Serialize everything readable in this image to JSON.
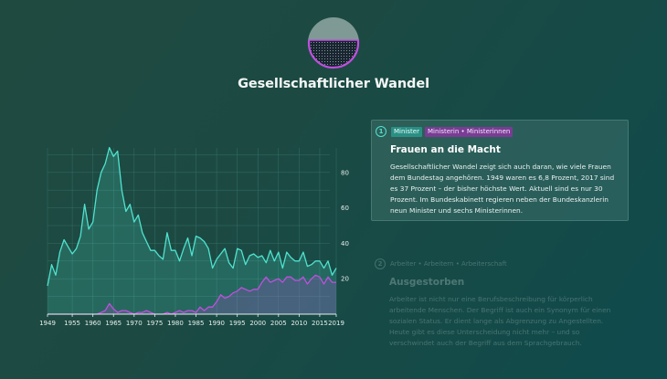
{
  "header": {
    "title": "Gesellschaftlicher Wandel",
    "logo_icon": "half-filled-circle-icon"
  },
  "colors": {
    "accent_teal": "#4fe3cf",
    "accent_purple": "#c04fe0",
    "grid": "#3d7f74"
  },
  "chart_data": {
    "type": "area",
    "title": "",
    "xlabel": "",
    "ylabel": "",
    "xlim": [
      1949,
      2019
    ],
    "ylim": [
      0,
      100
    ],
    "grid": true,
    "x_ticks": [
      "1949",
      "1955",
      "1960",
      "1965",
      "1970",
      "1975",
      "1980",
      "1985",
      "1990",
      "1995",
      "2000",
      "2005",
      "2010",
      "2015",
      "2019"
    ],
    "y_ticks": [
      "20",
      "40",
      "60",
      "80"
    ],
    "series": [
      {
        "color": "#4fe3cf",
        "x": [
          1949,
          1950,
          1951,
          1952,
          1953,
          1954,
          1955,
          1956,
          1957,
          1958,
          1959,
          1960,
          1961,
          1962,
          1963,
          1964,
          1965,
          1966,
          1967,
          1968,
          1969,
          1970,
          1971,
          1972,
          1973,
          1974,
          1975,
          1976,
          1977,
          1978,
          1979,
          1980,
          1981,
          1982,
          1983,
          1984,
          1985,
          1986,
          1987,
          1988,
          1989,
          1990,
          1991,
          1992,
          1993,
          1994,
          1995,
          1996,
          1997,
          1998,
          1999,
          2000,
          2001,
          2002,
          2003,
          2004,
          2005,
          2006,
          2007,
          2008,
          2009,
          2010,
          2011,
          2012,
          2013,
          2014,
          2015,
          2016,
          2017,
          2018,
          2019
        ],
        "values": [
          16,
          28,
          22,
          35,
          42,
          38,
          34,
          37,
          44,
          62,
          48,
          52,
          70,
          80,
          85,
          94,
          89,
          92,
          70,
          58,
          62,
          52,
          56,
          46,
          41,
          36,
          36,
          33,
          31,
          46,
          36,
          36,
          30,
          37,
          43,
          33,
          44,
          43,
          41,
          37,
          26,
          31,
          34,
          37,
          29,
          26,
          37,
          36,
          28,
          33,
          34,
          32,
          33,
          29,
          36,
          30,
          35,
          26,
          35,
          32,
          30,
          30,
          35,
          27,
          28,
          30,
          30,
          26,
          30,
          22,
          26
        ]
      },
      {
        "color": "#c04fe0",
        "x": [
          1949,
          1950,
          1951,
          1952,
          1953,
          1954,
          1955,
          1956,
          1957,
          1958,
          1959,
          1960,
          1961,
          1962,
          1963,
          1964,
          1965,
          1966,
          1967,
          1968,
          1969,
          1970,
          1971,
          1972,
          1973,
          1974,
          1975,
          1976,
          1977,
          1978,
          1979,
          1980,
          1981,
          1982,
          1983,
          1984,
          1985,
          1986,
          1987,
          1988,
          1989,
          1990,
          1991,
          1992,
          1993,
          1994,
          1995,
          1996,
          1997,
          1998,
          1999,
          2000,
          2001,
          2002,
          2003,
          2004,
          2005,
          2006,
          2007,
          2008,
          2009,
          2010,
          2011,
          2012,
          2013,
          2014,
          2015,
          2016,
          2017,
          2018,
          2019
        ],
        "values": [
          0,
          0,
          0,
          0,
          0,
          0,
          0,
          0,
          0,
          0,
          0,
          0,
          0,
          1,
          2,
          6,
          3,
          1,
          2,
          2,
          1,
          0,
          1,
          1,
          2,
          1,
          0,
          0,
          0,
          1,
          0,
          1,
          2,
          1,
          2,
          2,
          1,
          4,
          2,
          4,
          4,
          7,
          11,
          9,
          10,
          12,
          13,
          15,
          14,
          13,
          14,
          14,
          18,
          21,
          18,
          19,
          20,
          18,
          21,
          21,
          19,
          19,
          21,
          17,
          20,
          22,
          21,
          17,
          21,
          18,
          18
        ]
      }
    ]
  },
  "cards": [
    {
      "number": "1",
      "tag_1": "Minister",
      "tag_2": "Ministerin • Ministerinnen",
      "title": "Frauen an die Macht",
      "body": "Gesellschaftlicher Wandel zeigt sich auch daran, wie viele Frauen dem Bundestag angehören. 1949 waren es 6,8 Prozent, 2017 sind es 37 Prozent – der bisher höchste Wert. Aktuell sind es nur 30 Prozent. Im Bundeskabinett regieren neben der Bundeskanzlerin neun Minister und sechs Ministerinnen."
    },
    {
      "number": "2",
      "tag_1": "Arbeiter • Arbeitern • Arbeiterschaft",
      "title": "Ausgestorben",
      "body": "Arbeiter ist nicht nur eine Berufsbeschreibung für körperlich arbeitende Menschen. Der Begriff ist auch ein Synonym für einen sozialen Status. Er dient lange als Abgrenzung zu Angestellten. Heute gibt es diese Unterscheidung nicht mehr – und so verschwindet auch der Begriff aus dem Sprachgebrauch."
    }
  ]
}
